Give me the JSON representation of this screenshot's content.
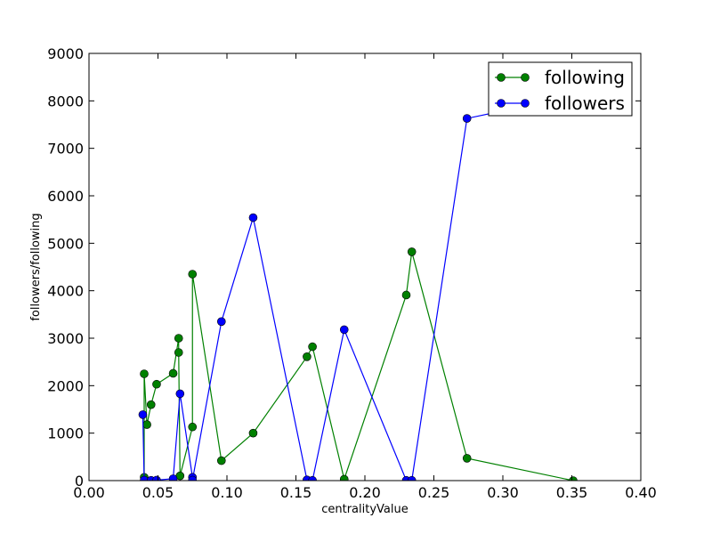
{
  "chart_data": {
    "type": "line",
    "title": "",
    "xlabel": "centralityValue",
    "ylabel": "followers/following",
    "xlim": [
      0.0,
      0.4
    ],
    "ylim": [
      0,
      9000
    ],
    "x_ticks": [
      "0.00",
      "0.05",
      "0.10",
      "0.15",
      "0.20",
      "0.25",
      "0.30",
      "0.35",
      "0.40"
    ],
    "y_ticks": [
      "0",
      "1000",
      "2000",
      "3000",
      "4000",
      "5000",
      "6000",
      "7000",
      "8000",
      "9000"
    ],
    "grid": false,
    "legend_position": "top-right",
    "series": [
      {
        "name": "following",
        "color": "#008000",
        "marker": "circle",
        "x": [
          0.04,
          0.04,
          0.042,
          0.045,
          0.049,
          0.061,
          0.065,
          0.065,
          0.066,
          0.075,
          0.075,
          0.096,
          0.119,
          0.158,
          0.162,
          0.185,
          0.23,
          0.234,
          0.274,
          0.351
        ],
        "y": [
          70,
          2250,
          1180,
          1600,
          2030,
          2260,
          3000,
          2700,
          100,
          1130,
          4350,
          420,
          1000,
          2610,
          2820,
          30,
          3910,
          4820,
          470,
          0
        ]
      },
      {
        "name": "followers",
        "color": "#0000ff",
        "marker": "circle",
        "x": [
          0.039,
          0.04,
          0.045,
          0.049,
          0.061,
          0.066,
          0.075,
          0.075,
          0.096,
          0.119,
          0.158,
          0.162,
          0.185,
          0.23,
          0.234,
          0.274,
          0.351
        ],
        "y": [
          1390,
          10,
          5,
          10,
          40,
          1830,
          70,
          10,
          3350,
          5540,
          15,
          5,
          3180,
          5,
          5,
          7630,
          8100
        ]
      }
    ]
  }
}
